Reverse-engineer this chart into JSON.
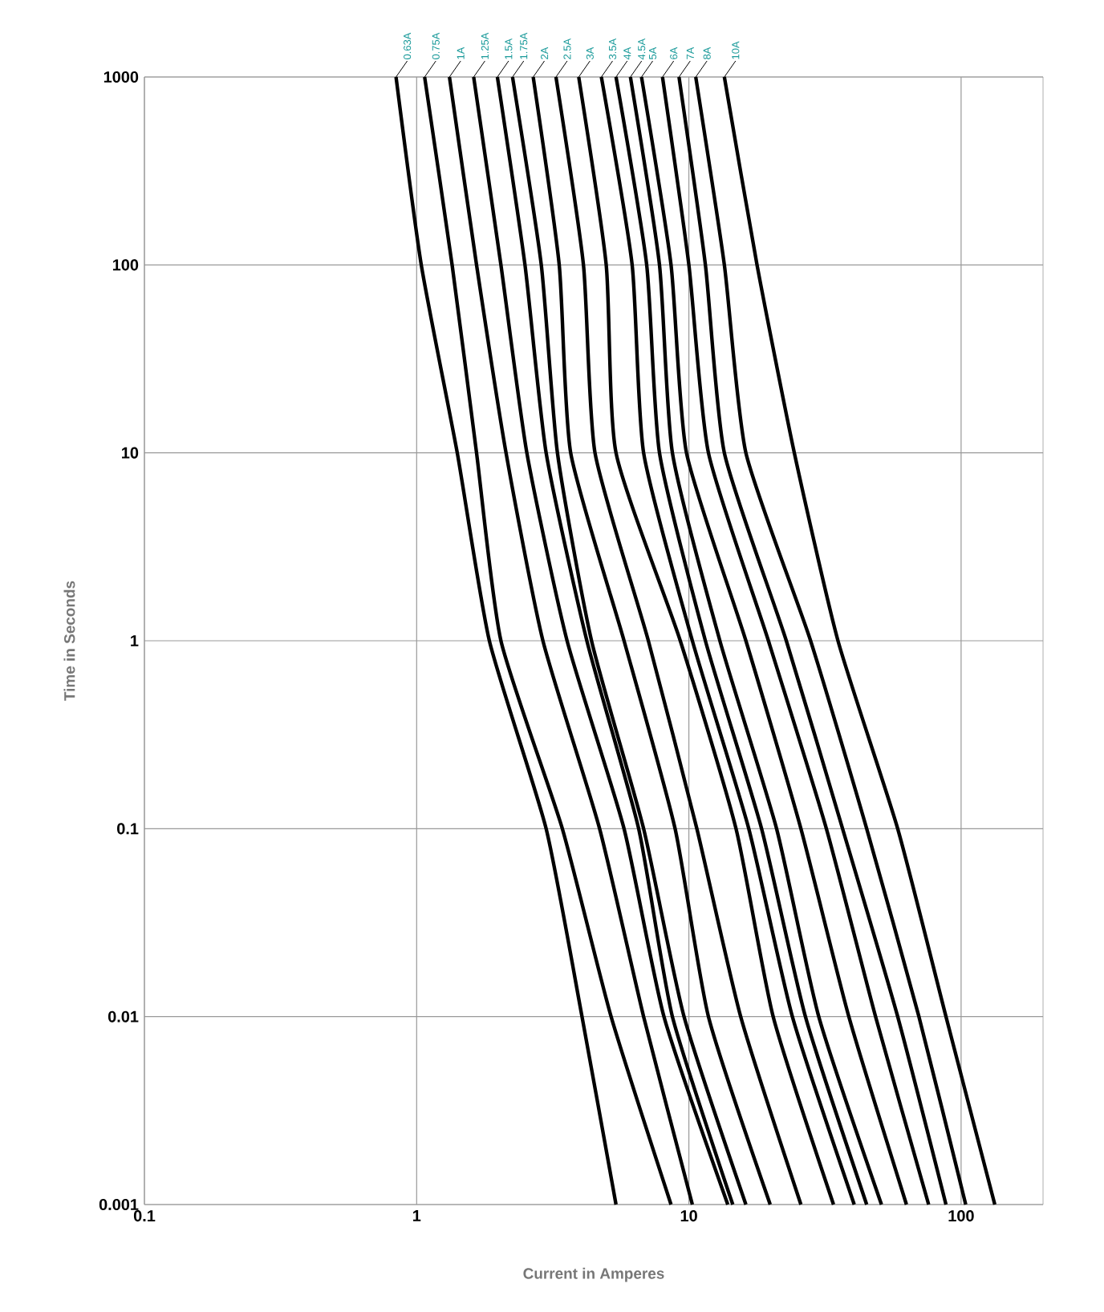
{
  "chart_data": {
    "type": "line",
    "xlabel": "Current in Amperes",
    "ylabel": "Time in Seconds",
    "log": "xy",
    "grid": true,
    "xlim": [
      0.1,
      200
    ],
    "ylim": [
      0.001,
      1000
    ],
    "xticks": [
      0.1,
      1,
      10,
      100
    ],
    "yticks": [
      0.001,
      0.01,
      0.1,
      1,
      10,
      100,
      1000
    ],
    "series": [
      {
        "name": "0.63A",
        "color": "#000000",
        "x": [
          0.84,
          1.04,
          1.41,
          1.85,
          2.99,
          4.05,
          5.4
        ],
        "values": [
          1000,
          100,
          10,
          1,
          0.1,
          0.01,
          0.001
        ]
      },
      {
        "name": "0.75A",
        "color": "#000000",
        "x": [
          1.07,
          1.35,
          1.66,
          2.04,
          3.43,
          5.18,
          8.6
        ],
        "values": [
          1000,
          100,
          10,
          1,
          0.1,
          0.01,
          0.001
        ]
      },
      {
        "name": "1A",
        "color": "#000000",
        "x": [
          1.32,
          1.66,
          2.13,
          2.91,
          4.7,
          6.82,
          10.3
        ],
        "values": [
          1000,
          100,
          10,
          1,
          0.1,
          0.01,
          0.001
        ]
      },
      {
        "name": "1.25A",
        "color": "#000000",
        "x": [
          1.62,
          2.04,
          2.54,
          3.57,
          5.78,
          8.1,
          13.9
        ],
        "values": [
          1000,
          100,
          10,
          1,
          0.1,
          0.01,
          0.001
        ]
      },
      {
        "name": "1.5A",
        "color": "#000000",
        "x": [
          1.98,
          2.5,
          2.99,
          4.22,
          6.54,
          8.7,
          14.5
        ],
        "values": [
          1000,
          100,
          10,
          1,
          0.1,
          0.01,
          0.001
        ]
      },
      {
        "name": "1.75A",
        "color": "#000000",
        "x": [
          2.25,
          2.87,
          3.29,
          4.39,
          6.82,
          9.6,
          16.2
        ],
        "values": [
          1000,
          100,
          10,
          1,
          0.1,
          0.01,
          0.001
        ]
      },
      {
        "name": "2A",
        "color": "#000000",
        "x": [
          2.68,
          3.34,
          3.68,
          5.78,
          8.9,
          11.8,
          19.9
        ],
        "values": [
          1000,
          100,
          10,
          1,
          0.1,
          0.01,
          0.001
        ]
      },
      {
        "name": "2.5A",
        "color": "#000000",
        "x": [
          3.25,
          4.1,
          4.52,
          7.1,
          10.7,
          15.5,
          25.8
        ],
        "values": [
          1000,
          100,
          10,
          1,
          0.1,
          0.01,
          0.001
        ]
      },
      {
        "name": "3A",
        "color": "#000000",
        "x": [
          3.94,
          4.97,
          5.4,
          9.3,
          14.9,
          20.4,
          34
        ],
        "values": [
          1000,
          100,
          10,
          1,
          0.1,
          0.01,
          0.001
        ]
      },
      {
        "name": "3.5A",
        "color": "#000000",
        "x": [
          4.77,
          6.19,
          6.82,
          10.3,
          16.6,
          24,
          40.5
        ],
        "values": [
          1000,
          100,
          10,
          1,
          0.1,
          0.01,
          0.001
        ]
      },
      {
        "name": "4A",
        "color": "#000000",
        "x": [
          5.4,
          7.0,
          7.8,
          11.5,
          18.5,
          26.8,
          45
        ],
        "values": [
          1000,
          100,
          10,
          1,
          0.1,
          0.01,
          0.001
        ]
      },
      {
        "name": "4.5A",
        "color": "#000000",
        "x": [
          6.1,
          7.8,
          8.7,
          13,
          21,
          30,
          51
        ],
        "values": [
          1000,
          100,
          10,
          1,
          0.1,
          0.01,
          0.001
        ]
      },
      {
        "name": "5A",
        "color": "#000000",
        "x": [
          6.7,
          8.6,
          9.8,
          16.2,
          25.8,
          38.7,
          63
        ],
        "values": [
          1000,
          100,
          10,
          1,
          0.1,
          0.01,
          0.001
        ]
      },
      {
        "name": "6A",
        "color": "#000000",
        "x": [
          8.0,
          10,
          11.8,
          19.6,
          32,
          48.5,
          76
        ],
        "values": [
          1000,
          100,
          10,
          1,
          0.1,
          0.01,
          0.001
        ]
      },
      {
        "name": "7A",
        "color": "#000000",
        "x": [
          9.2,
          11.5,
          13.5,
          22.8,
          36.7,
          58.5,
          88
        ],
        "values": [
          1000,
          100,
          10,
          1,
          0.1,
          0.01,
          0.001
        ]
      },
      {
        "name": "8A",
        "color": "#000000",
        "x": [
          10.6,
          13.5,
          16.2,
          28,
          45,
          70,
          104
        ],
        "values": [
          1000,
          100,
          10,
          1,
          0.1,
          0.01,
          0.001
        ]
      },
      {
        "name": "10A",
        "color": "#000000",
        "x": [
          13.5,
          17.8,
          24.4,
          35.3,
          58.5,
          88,
          133
        ],
        "values": [
          1000,
          100,
          10,
          1,
          0.1,
          0.01,
          0.001
        ]
      }
    ]
  }
}
